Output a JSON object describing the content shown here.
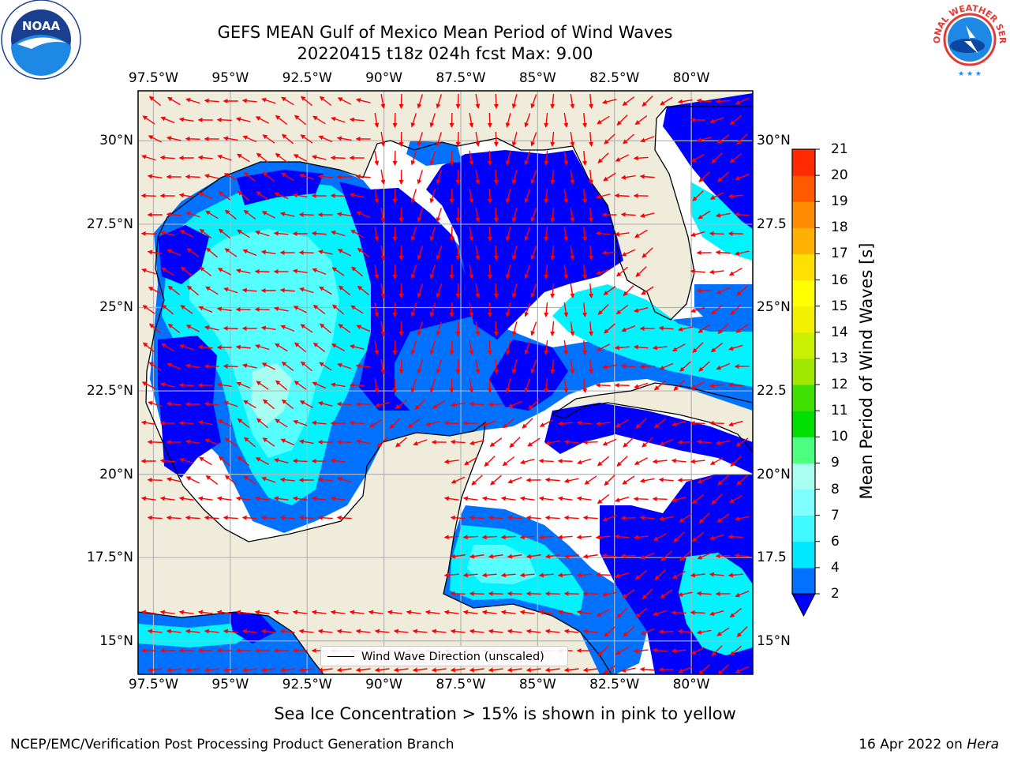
{
  "title": {
    "line1": "GEFS MEAN Gulf of Mexico Mean Period of Wind Waves",
    "line2": "20220415 t18z 024h fcst   Max: 9.00"
  },
  "axes": {
    "lon_labels": [
      "97.5°W",
      "95°W",
      "92.5°W",
      "90°W",
      "87.5°W",
      "85°W",
      "82.5°W",
      "80°W"
    ],
    "lon_values": [
      -97.5,
      -95,
      -92.5,
      -90,
      -87.5,
      -85,
      -82.5,
      -80
    ],
    "lat_labels_left": [
      "30°N",
      "27.5°N",
      "25°N",
      "22.5°N",
      "20°N",
      "17.5°N",
      "15°N"
    ],
    "lat_labels_right": [
      "30°N",
      "27.5",
      "25°N",
      "22.5",
      "20°N",
      "17.5",
      "15°N"
    ],
    "lat_values": [
      30,
      27.5,
      25,
      22.5,
      20,
      17.5,
      15
    ],
    "lon_range": [
      -98,
      -78
    ],
    "lat_range": [
      14,
      31.5
    ]
  },
  "colorbar": {
    "label": "Mean Period of Wind Waves [s]",
    "ticks": [
      "2",
      "4",
      "6",
      "7",
      "8",
      "9",
      "10",
      "11",
      "12",
      "13",
      "14",
      "15",
      "16",
      "17",
      "18",
      "19",
      "20",
      "21"
    ],
    "colors": [
      "#0072ff",
      "#00e8ff",
      "#40f8ff",
      "#80ffff",
      "#a8fff0",
      "#4dff7f",
      "#00e000",
      "#40e000",
      "#a0e800",
      "#c8f000",
      "#f0f000",
      "#ffff00",
      "#ffe000",
      "#ffb000",
      "#ff8c00",
      "#ff5a00",
      "#ff2a00",
      "#ff0000"
    ],
    "extend_color": "#0000ff"
  },
  "colors": {
    "land": "#efecdc",
    "deep_blue": "#0000ff",
    "mid_blue": "#0072ff",
    "cyan": "#00f4ff",
    "light_cyan": "#55ffff",
    "arrow": "#ff0000",
    "grid": "#b4b4b4"
  },
  "legend": {
    "label": "Wind Wave Direction (unscaled)"
  },
  "notes": {
    "ice": "Sea Ice Concentration > 15% is shown in pink to yellow"
  },
  "footer": {
    "left": "NCEP/EMC/Verification Post Processing Product Generation Branch",
    "date": "16 Apr 2022 on ",
    "machine": "Hera"
  },
  "logos": {
    "noaa_text": "NOAA",
    "nws_text": "NATIONAL WEATHER SERVICE"
  }
}
